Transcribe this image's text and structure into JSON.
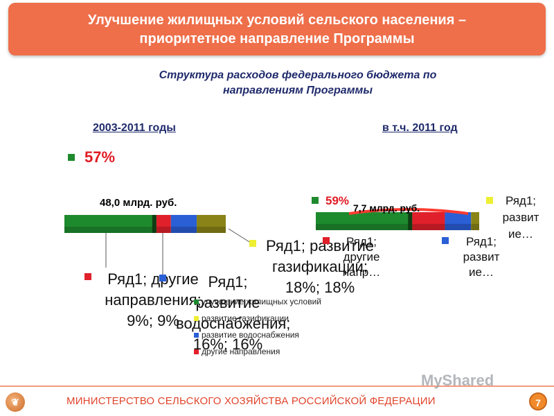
{
  "header": {
    "title_line1": "Улучшение жилищных условий сельского населения –",
    "title_line2": "приоритетное направление Программы"
  },
  "subtitle_line1": "Структура расходов федерального бюджета по",
  "subtitle_line2": "направлениям Программы",
  "colors": {
    "housing": "#1e8a2e",
    "gas": "#8a8418",
    "water": "#2a5fd6",
    "other": "#e0202a"
  },
  "chart_data": [
    {
      "type": "pie",
      "period_label": "2003-2011 годы",
      "total_label": "48,0 млрд. руб.",
      "categories": [
        "улучшение жилищных условий",
        "развитие газификации",
        "развитие водоснабжения",
        "другие направления"
      ],
      "values": [
        57,
        18,
        16,
        9
      ],
      "data_labels": [
        "57%",
        "Ряд1; развитие газификации; 18%; 18%",
        "Ряд1; развитие водоснабжения; 16%; 16%",
        "Ряд1; другие направления; 9%; 9%"
      ],
      "legend": [
        "улучшение жилищных условий",
        "развитие газификации",
        "развитие водоснабжения",
        "другие направления"
      ],
      "legend_position": "bottom-center"
    },
    {
      "type": "pie",
      "period_label": "в т.ч. 2011 год",
      "total_label": "7,7 млрд. руб.",
      "categories": [
        "улучшение жилищных условий",
        "развитие газификации",
        "развитие водоснабжения",
        "другие направления"
      ],
      "values": [
        59,
        5,
        16,
        20
      ],
      "data_labels": [
        "59%",
        "Ряд1; развит ие…",
        "Ряд1; развит ие…",
        "Ряд1; другие напр…"
      ]
    }
  ],
  "footer": {
    "ministry": "МИНИСТЕРСТВО СЕЛЬСКОГО ХОЗЯЙСТВА РОССИЙСКОЙ ФЕДЕРАЦИИ",
    "page_number": "7",
    "watermark": "MyShared"
  }
}
